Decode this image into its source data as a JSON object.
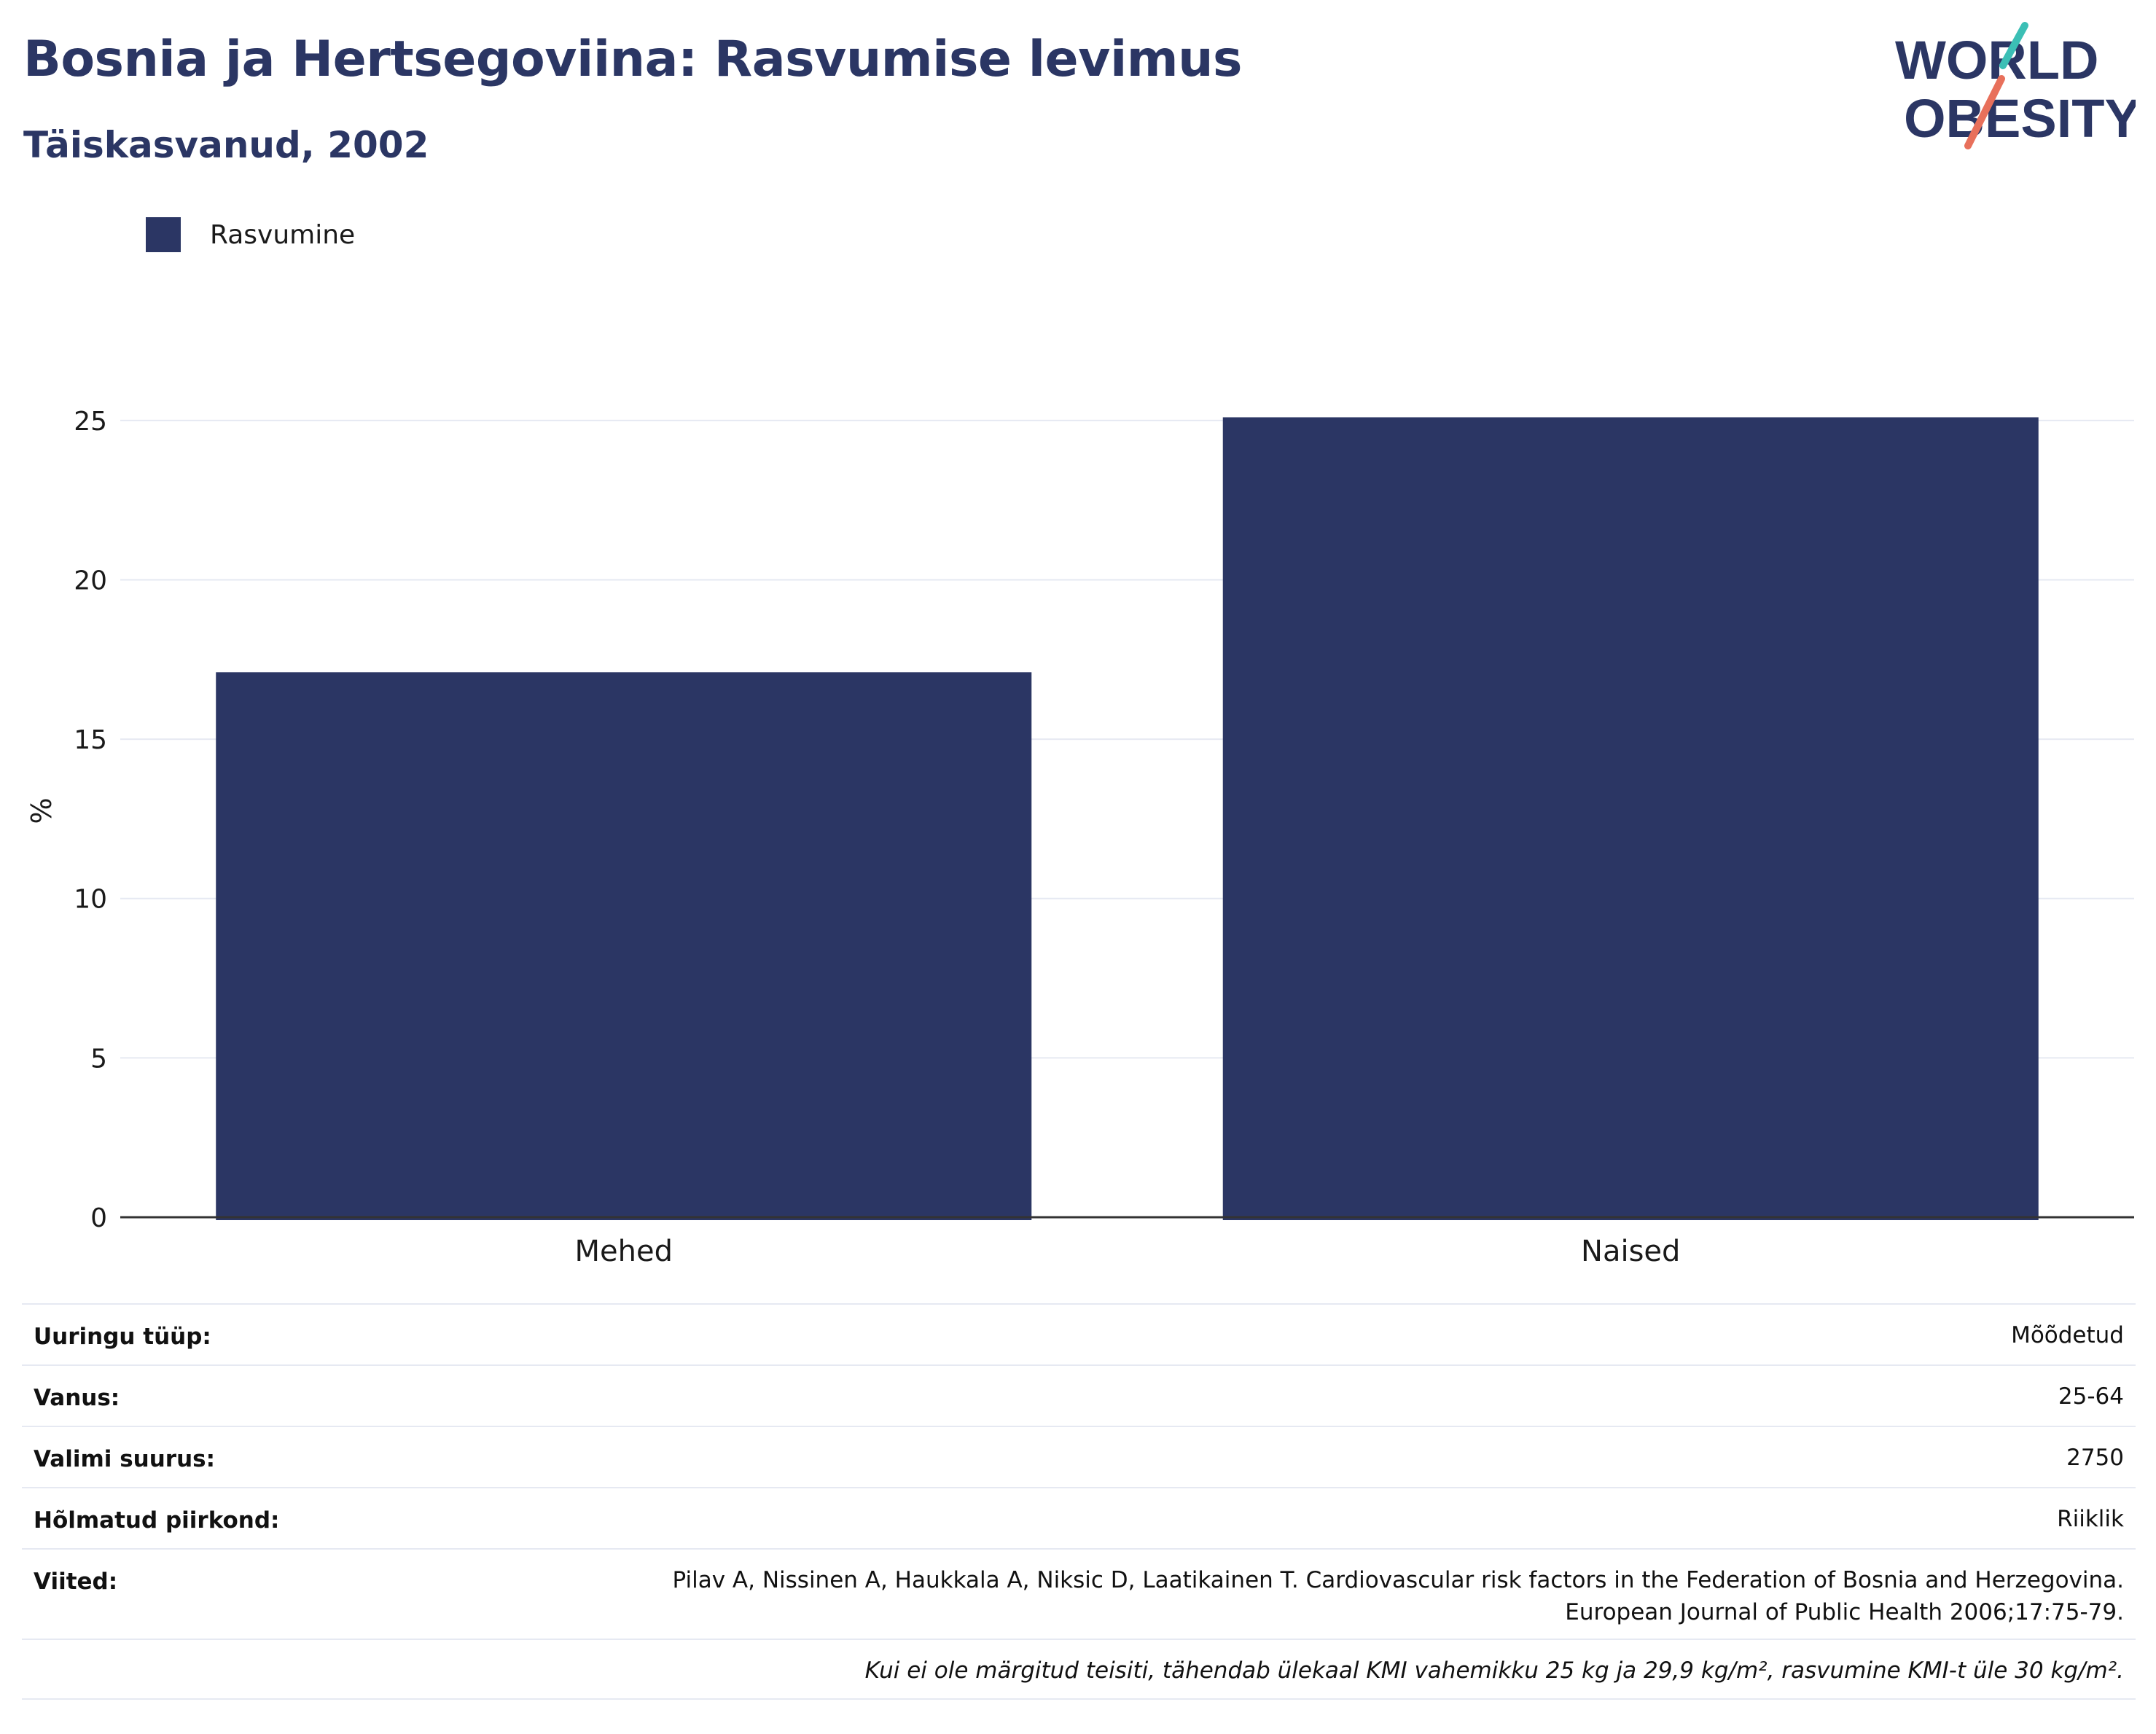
{
  "title": "Bosnia ja Hertsegoviina: Rasvumise levimus",
  "subtitle": "Täiskasvanud, 2002",
  "logo": {
    "line1": "WORLD",
    "line2": "OBESITY"
  },
  "colors": {
    "bar": "#2b3664",
    "grid": "#e6e9f2",
    "axis": "#333333",
    "logo_teal": "#3bbfb5",
    "logo_coral": "#e8705b"
  },
  "legend": {
    "label": "Rasvumine",
    "placement": "top-left"
  },
  "chart_data": {
    "type": "bar",
    "categories": [
      "Mehed",
      "Naised"
    ],
    "series": [
      {
        "name": "Rasvumine",
        "values": [
          17.1,
          25.1
        ]
      }
    ],
    "ylabel": "%",
    "xlabel": "",
    "ylim": [
      0,
      25.5
    ],
    "yticks": [
      0,
      5,
      10,
      15,
      20,
      25
    ],
    "grid": true
  },
  "info": {
    "rows": [
      {
        "label": "Uuringu tüüp:",
        "value": [
          "Mõõdetud"
        ]
      },
      {
        "label": "Vanus:",
        "value": [
          "25-64"
        ]
      },
      {
        "label": "Valimi suurus:",
        "value": [
          "2750"
        ]
      },
      {
        "label": "Hõlmatud piirkond:",
        "value": [
          "Riiklik"
        ]
      },
      {
        "label": "Viited:",
        "value": [
          "Pilav A, Nissinen A, Haukkala A, Niksic D, Laatikainen T. Cardiovascular risk factors in the Federation of Bosnia and Herzegovina.",
          "European Journal of Public Health 2006;17:75-79."
        ]
      }
    ],
    "footnote": "Kui ei ole märgitud teisiti, tähendab ülekaal KMI vahemikku 25 kg ja 29,9 kg/m², rasvumine KMI-t üle 30 kg/m²."
  }
}
